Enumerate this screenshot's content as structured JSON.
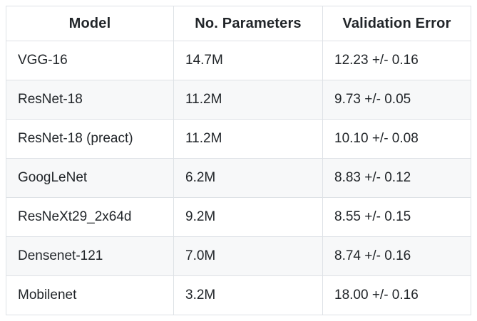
{
  "chart_data": {
    "type": "table",
    "title": "",
    "columns": [
      "Model",
      "No. Parameters",
      "Validation Error"
    ],
    "rows": [
      [
        "VGG-16",
        "14.7M",
        "12.23 +/- 0.16"
      ],
      [
        "ResNet-18",
        "11.2M",
        "9.73 +/- 0.05"
      ],
      [
        "ResNet-18 (preact)",
        "11.2M",
        "10.10 +/- 0.08"
      ],
      [
        "GoogLeNet",
        "6.2M",
        "8.83 +/- 0.12"
      ],
      [
        "ResNeXt29_2x64d",
        "9.2M",
        "8.55 +/- 0.15"
      ],
      [
        "Densenet-121",
        "7.0M",
        "8.74 +/- 0.16"
      ],
      [
        "Mobilenet",
        "3.2M",
        "18.00 +/- 0.16"
      ]
    ],
    "layout": {
      "header_align": "center",
      "cell_align": "left",
      "striped_rows": "even",
      "grid": true
    },
    "colors": {
      "background": "#ffffff",
      "stripe": "#f7f8f9",
      "border": "#dee2e6",
      "text": "#212529"
    }
  }
}
